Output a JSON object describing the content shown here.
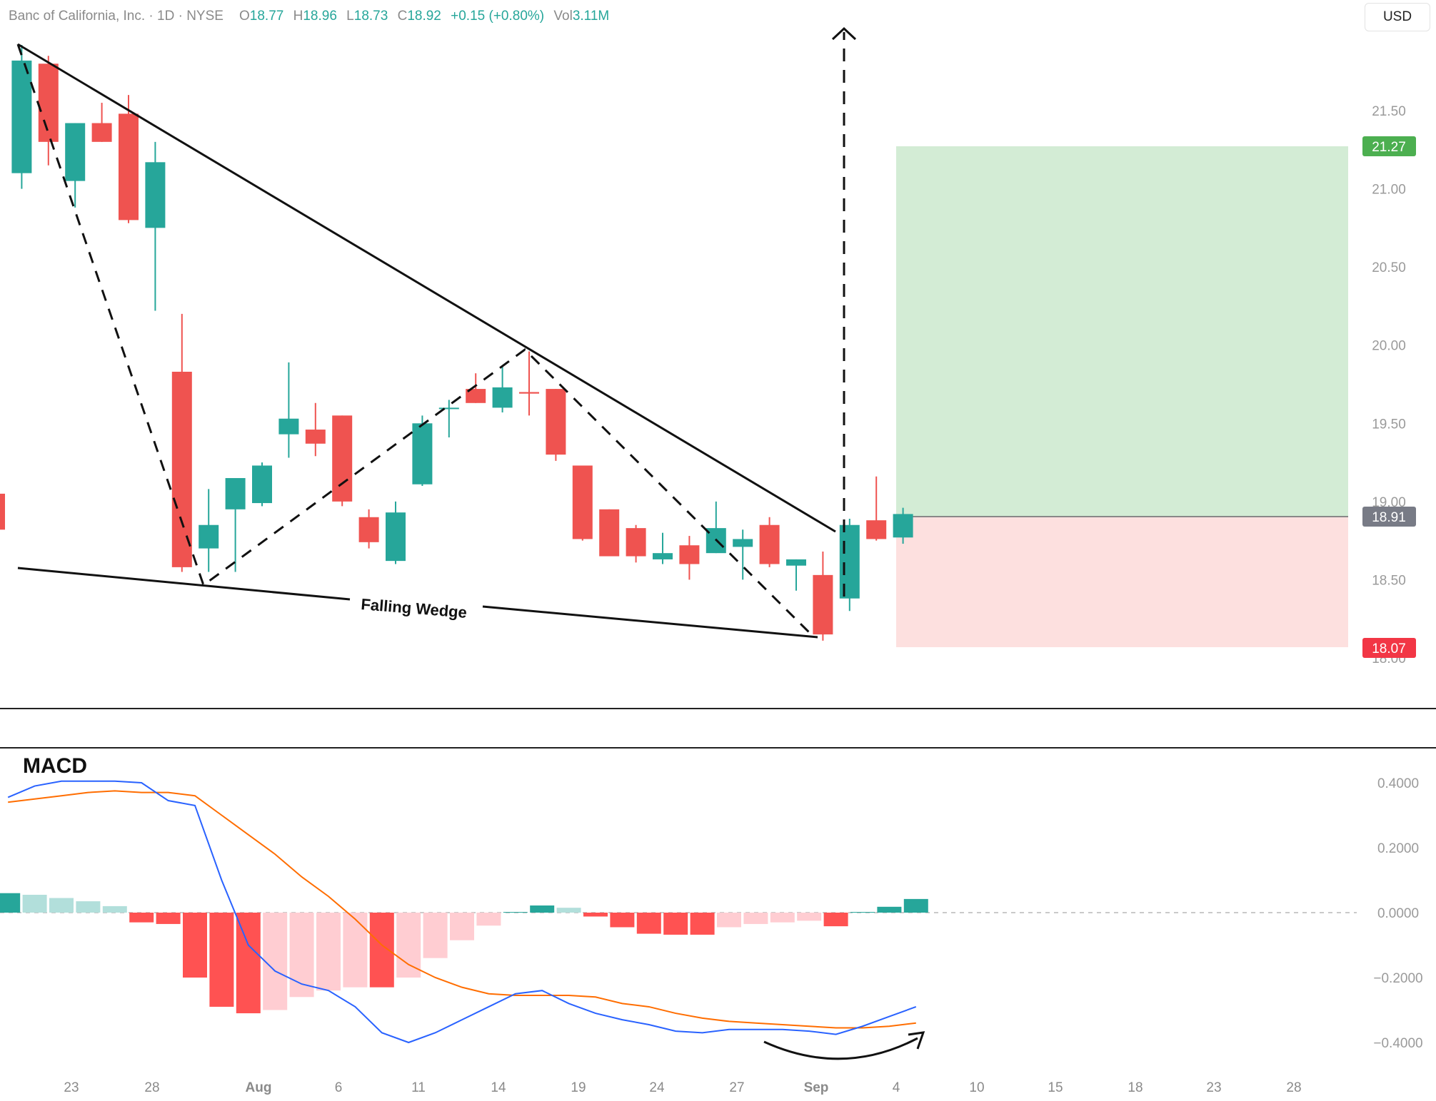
{
  "header": {
    "symbol": "Banc of California, Inc. · 1D · NYSE",
    "o_label": "O",
    "o_value": "18.77",
    "h_label": "H",
    "h_value": "18.96",
    "l_label": "L",
    "l_value": "18.73",
    "c_label": "C",
    "c_value": "18.92",
    "change": "+0.15 (+0.80%)",
    "vol_label": "Vol",
    "vol_value": "3.11M"
  },
  "currency": "USD",
  "colors": {
    "up": "#26a69a",
    "down": "#ef5350",
    "hist_up_strong": "#26a69a",
    "hist_up_weak": "#b2dfdb",
    "hist_down_strong": "#ff5252",
    "hist_down_weak": "#ffcdd2",
    "macd_line": "#2962ff",
    "signal_line": "#ff6d00",
    "target_zone": "#d3ecd5",
    "stop_zone": "#fde0df"
  },
  "price_axis": {
    "labels": [
      "21.50",
      "21.00",
      "20.50",
      "20.00",
      "19.50",
      "19.00",
      "18.50",
      "18.00"
    ],
    "current": "18.91",
    "target": "21.27",
    "stop": "18.07"
  },
  "macd_axis": {
    "labels": [
      "0.4000",
      "0.2000",
      "0.0000",
      "−0.2000",
      "−0.4000"
    ]
  },
  "macd_title": "MACD",
  "pattern_label": "Falling Wedge",
  "date_labels": [
    "23",
    "28",
    "Aug",
    "6",
    "11",
    "14",
    "19",
    "24",
    "27",
    "Sep",
    "4",
    "10",
    "15",
    "18",
    "23",
    "28"
  ],
  "chart_data": {
    "type": "candlestick",
    "ylim": [
      17.75,
      22.1
    ],
    "candles": [
      {
        "o": 19.05,
        "h": 19.1,
        "l": 18.8,
        "c": 18.82
      },
      {
        "o": 21.1,
        "h": 21.92,
        "l": 21.0,
        "c": 21.82
      },
      {
        "o": 21.8,
        "h": 21.85,
        "l": 21.15,
        "c": 21.3
      },
      {
        "o": 21.05,
        "h": 21.42,
        "l": 20.88,
        "c": 21.42
      },
      {
        "o": 21.42,
        "h": 21.55,
        "l": 21.3,
        "c": 21.3
      },
      {
        "o": 21.48,
        "h": 21.6,
        "l": 20.78,
        "c": 20.8
      },
      {
        "o": 20.75,
        "h": 21.3,
        "l": 20.22,
        "c": 21.17
      },
      {
        "o": 19.83,
        "h": 20.2,
        "l": 18.55,
        "c": 18.58
      },
      {
        "o": 18.7,
        "h": 19.08,
        "l": 18.55,
        "c": 18.85
      },
      {
        "o": 18.95,
        "h": 19.15,
        "l": 18.55,
        "c": 19.15
      },
      {
        "o": 18.99,
        "h": 19.25,
        "l": 18.97,
        "c": 19.23
      },
      {
        "o": 19.43,
        "h": 19.89,
        "l": 19.28,
        "c": 19.53
      },
      {
        "o": 19.46,
        "h": 19.63,
        "l": 19.29,
        "c": 19.37
      },
      {
        "o": 19.55,
        "h": 19.55,
        "l": 18.97,
        "c": 19.0
      },
      {
        "o": 18.9,
        "h": 18.95,
        "l": 18.7,
        "c": 18.74
      },
      {
        "o": 18.62,
        "h": 19.0,
        "l": 18.6,
        "c": 18.93
      },
      {
        "o": 19.11,
        "h": 19.55,
        "l": 19.1,
        "c": 19.5
      },
      {
        "o": 19.6,
        "h": 19.65,
        "l": 19.41,
        "c": 19.6
      },
      {
        "o": 19.72,
        "h": 19.82,
        "l": 19.63,
        "c": 19.63
      },
      {
        "o": 19.6,
        "h": 19.87,
        "l": 19.57,
        "c": 19.73
      },
      {
        "o": 19.7,
        "h": 19.96,
        "l": 19.55,
        "c": 19.69
      },
      {
        "o": 19.72,
        "h": 19.72,
        "l": 19.26,
        "c": 19.3
      },
      {
        "o": 19.23,
        "h": 19.23,
        "l": 18.75,
        "c": 18.76
      },
      {
        "o": 18.95,
        "h": 18.95,
        "l": 18.65,
        "c": 18.65
      },
      {
        "o": 18.83,
        "h": 18.85,
        "l": 18.61,
        "c": 18.65
      },
      {
        "o": 18.63,
        "h": 18.8,
        "l": 18.6,
        "c": 18.67
      },
      {
        "o": 18.72,
        "h": 18.78,
        "l": 18.5,
        "c": 18.6
      },
      {
        "o": 18.67,
        "h": 19.0,
        "l": 18.67,
        "c": 18.83
      },
      {
        "o": 18.71,
        "h": 18.82,
        "l": 18.5,
        "c": 18.76
      },
      {
        "o": 18.85,
        "h": 18.9,
        "l": 18.58,
        "c": 18.6
      },
      {
        "o": 18.59,
        "h": 18.63,
        "l": 18.43,
        "c": 18.63
      },
      {
        "o": 18.53,
        "h": 18.68,
        "l": 18.11,
        "c": 18.15
      },
      {
        "o": 18.38,
        "h": 18.89,
        "l": 18.3,
        "c": 18.85
      },
      {
        "o": 18.88,
        "h": 19.16,
        "l": 18.75,
        "c": 18.76
      },
      {
        "o": 18.77,
        "h": 18.96,
        "l": 18.73,
        "c": 18.92
      }
    ],
    "histogram": [
      0.06,
      0.055,
      0.045,
      0.035,
      0.02,
      -0.03,
      -0.035,
      -0.2,
      -0.29,
      -0.31,
      -0.3,
      -0.26,
      -0.24,
      -0.23,
      -0.23,
      -0.2,
      -0.14,
      -0.085,
      -0.04,
      0.002,
      0.022,
      0.015,
      -0.012,
      -0.045,
      -0.065,
      -0.068,
      -0.068,
      -0.045,
      -0.035,
      -0.03,
      -0.025,
      -0.042,
      0.002,
      0.018,
      0.042
    ],
    "macd": [
      0.355,
      0.39,
      0.405,
      0.405,
      0.405,
      0.4,
      0.345,
      0.33,
      0.1,
      -0.1,
      -0.18,
      -0.22,
      -0.24,
      -0.29,
      -0.37,
      -0.4,
      -0.37,
      -0.33,
      -0.29,
      -0.25,
      -0.24,
      -0.28,
      -0.31,
      -0.33,
      -0.345,
      -0.365,
      -0.37,
      -0.36,
      -0.36,
      -0.36,
      -0.365,
      -0.375,
      -0.35,
      -0.32,
      -0.29
    ],
    "signal": [
      0.34,
      0.35,
      0.36,
      0.37,
      0.375,
      0.37,
      0.37,
      0.36,
      0.3,
      0.24,
      0.18,
      0.11,
      0.05,
      -0.02,
      -0.1,
      -0.16,
      -0.2,
      -0.23,
      -0.25,
      -0.255,
      -0.255,
      -0.255,
      -0.26,
      -0.28,
      -0.29,
      -0.31,
      -0.325,
      -0.335,
      -0.34,
      -0.345,
      -0.35,
      -0.355,
      -0.355,
      -0.35,
      -0.34
    ],
    "macd_ylim": [
      -0.45,
      0.45
    ],
    "position": {
      "entry": 18.91,
      "target": 21.27,
      "stop": 18.07
    }
  }
}
